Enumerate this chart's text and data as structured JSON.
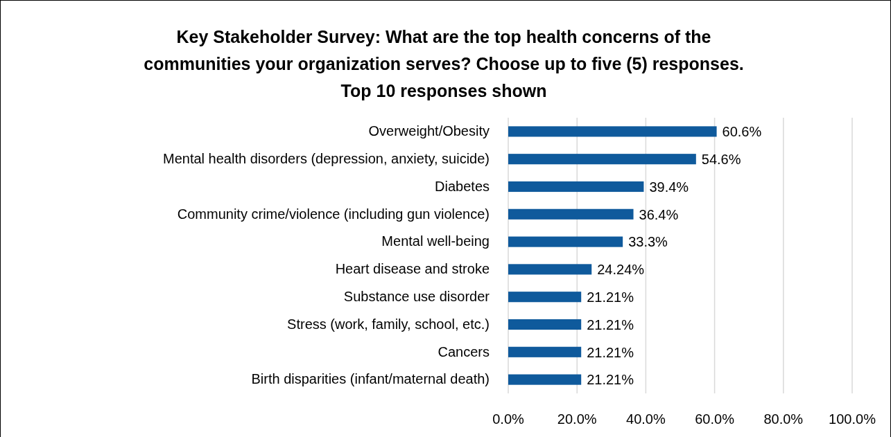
{
  "chart_data": {
    "type": "bar",
    "orientation": "horizontal",
    "title": "Key Stakeholder Survey: What are the top health concerns of the\ncommunities your organization serves? Choose up to five (5) responses.\nTop 10 responses shown",
    "categories": [
      "Overweight/Obesity",
      "Mental health disorders (depression, anxiety, suicide)",
      "Diabetes",
      "Community crime/violence (including gun violence)",
      "Mental well-being",
      "Heart disease and stroke",
      "Substance use disorder",
      "Stress (work, family, school, etc.)",
      "Cancers",
      "Birth disparities (infant/maternal death)"
    ],
    "values": [
      60.6,
      54.6,
      39.4,
      36.4,
      33.3,
      24.24,
      21.21,
      21.21,
      21.21,
      21.21
    ],
    "value_labels": [
      "60.6%",
      "54.6%",
      "39.4%",
      "36.4%",
      "33.3%",
      "24.24%",
      "21.21%",
      "21.21%",
      "21.21%",
      "21.21%"
    ],
    "color": "#0f5a9c",
    "xlim": [
      0,
      100
    ],
    "xticks": [
      {
        "value": 0,
        "label": "0.0%"
      },
      {
        "value": 20,
        "label": "20.0%"
      },
      {
        "value": 40,
        "label": "40.0%"
      },
      {
        "value": 60,
        "label": "60.0%"
      },
      {
        "value": 80,
        "label": "80.0%"
      },
      {
        "value": 100,
        "label": "100.0%"
      }
    ],
    "grid": "x"
  }
}
